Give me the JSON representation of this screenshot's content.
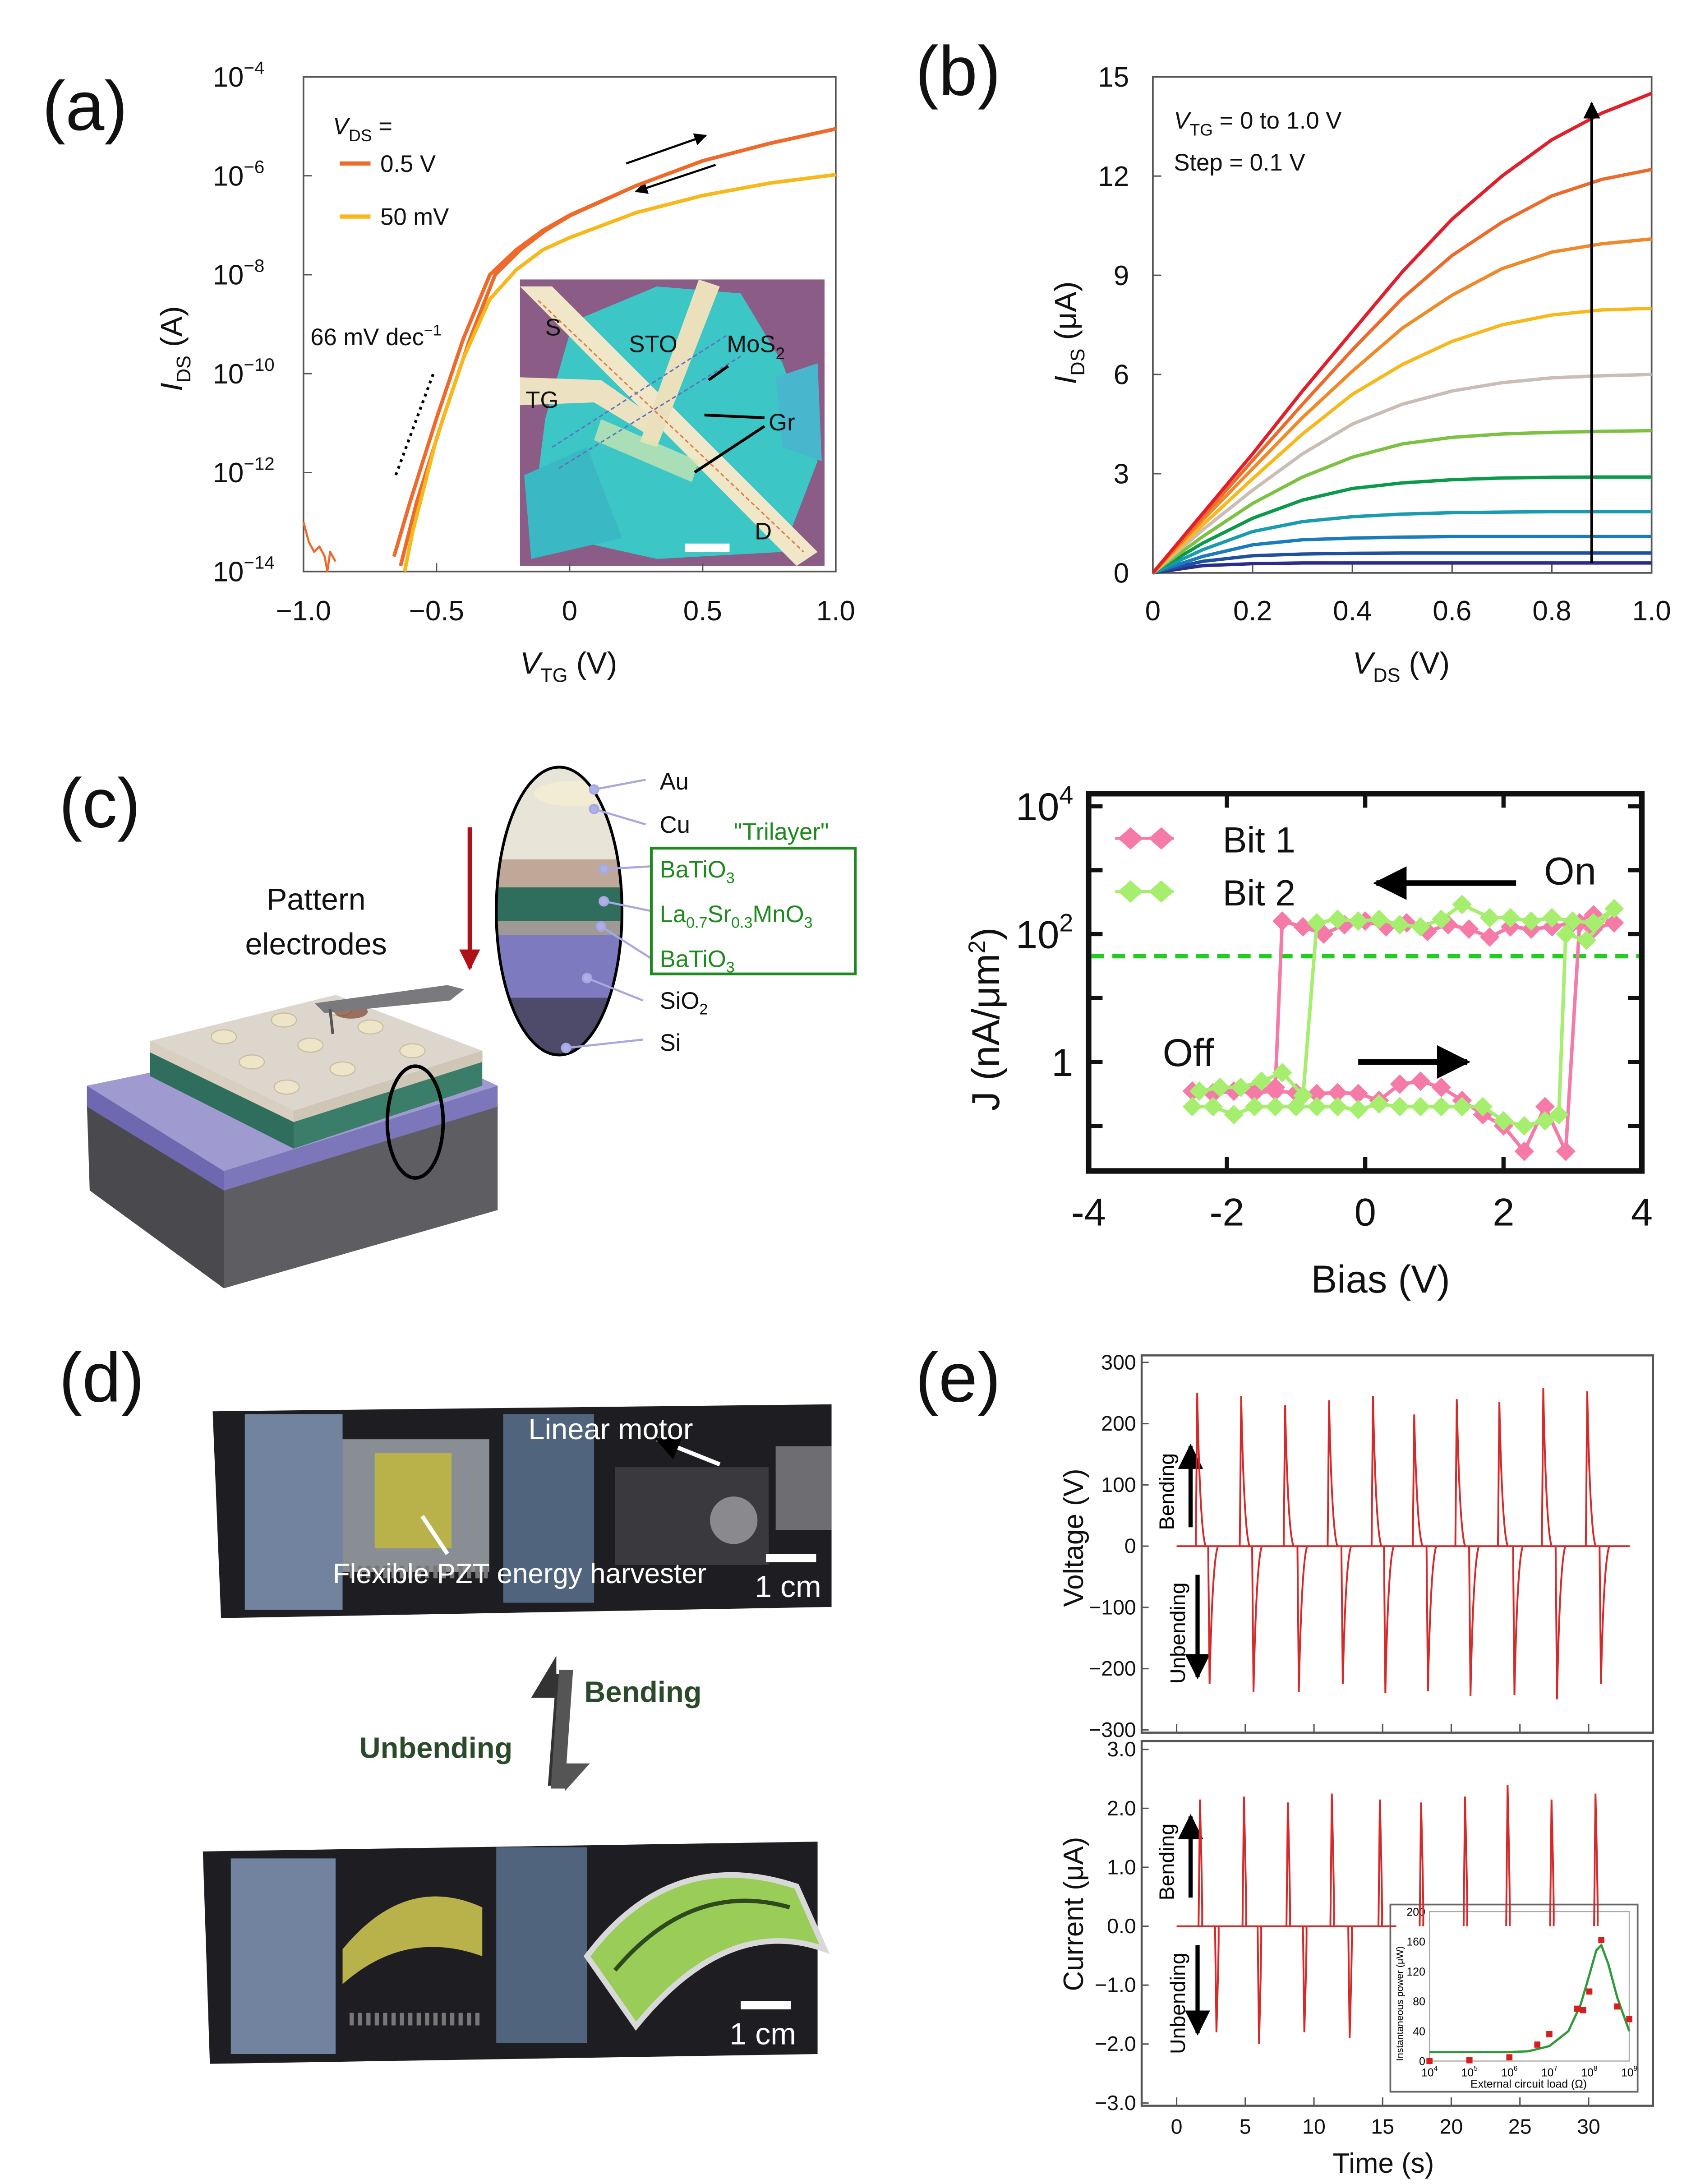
{
  "panels": {
    "a": "(a)",
    "b": "(b)",
    "c": "(c)",
    "d": "(d)",
    "e": "(e)"
  },
  "colors": {
    "orange": "#ef6a2a",
    "yellow": "#f7b81c",
    "pink": "#f57aa8",
    "lightgreen": "#a6ee6e",
    "dashgreen": "#22cc22",
    "spike": "#d42a2a",
    "fitgreen": "#2f9a3a",
    "trilayer": "#1e8a1e"
  },
  "chart_data": [
    {
      "id": "a",
      "type": "line",
      "yscale": "log",
      "xlabel": {
        "var": "V",
        "sub": "TG",
        "unit": " (V)"
      },
      "ylabel": {
        "var": "I",
        "sub": "DS",
        "unit": " (A)"
      },
      "xlim": [
        -1.0,
        1.0
      ],
      "ylim": [
        1e-14,
        0.0001
      ],
      "xticks": [
        "−1.0",
        "−0.5",
        "0",
        "0.5",
        "1.0"
      ],
      "xtick_values": [
        -1.0,
        -0.5,
        0,
        0.5,
        1.0
      ],
      "ytick_exponents": [
        "−4",
        "−6",
        "−8",
        "−10",
        "−12",
        "−14"
      ],
      "ytick_values": [
        -4,
        -6,
        -8,
        -10,
        -12,
        -14
      ],
      "legend": {
        "title_var": "V",
        "title_sub": "DS",
        "title_rest": " =",
        "placement": "top-left"
      },
      "series": [
        {
          "name": "0.5 V",
          "color": "#ef6a2a",
          "sweeps": [
            {
              "x": [
                -0.66,
                -0.6,
                -0.5,
                -0.4,
                -0.3,
                -0.2,
                -0.1,
                0,
                0.25,
                0.5,
                0.75,
                1.0
              ],
              "y": [
                2e-14,
                2.5e-13,
                1.26e-11,
                5e-10,
                1e-08,
                3.2e-08,
                7.9e-08,
                1.6e-07,
                6.3e-07,
                2e-06,
                4.5e-06,
                8.9e-06
              ]
            },
            {
              "x": [
                -0.635,
                -0.575,
                -0.475,
                -0.375,
                -0.28,
                -0.185,
                -0.09,
                0.005,
                0.25,
                0.5,
                0.75,
                1.0
              ],
              "y": [
                1.3e-14,
                2.5e-13,
                1.26e-11,
                5e-10,
                1e-08,
                3.2e-08,
                7.9e-08,
                1.6e-07,
                6.3e-07,
                2e-06,
                4.5e-06,
                8.9e-06
              ]
            }
          ]
        },
        {
          "name": "50 mV",
          "color": "#f7b81c",
          "sweeps": [
            {
              "x": [
                -0.62,
                -0.59,
                -0.5,
                -0.4,
                -0.3,
                -0.2,
                -0.1,
                0,
                0.25,
                0.5,
                0.75,
                1.0
              ],
              "y": [
                1e-14,
                6.3e-14,
                5e-12,
                2e-10,
                3.2e-09,
                1.26e-08,
                3.2e-08,
                5.6e-08,
                1.8e-07,
                4e-07,
                7.1e-07,
                1.05e-06
              ]
            }
          ]
        },
        {
          "name": "",
          "color": "#ef6a2a",
          "sweeps": [
            {
              "x": [
                -1.0,
                -0.98,
                -0.96,
                -0.94,
                -0.92,
                -0.91,
                -0.9,
                -0.88
              ],
              "y": [
                1e-13,
                4e-14,
                2.5e-14,
                3.2e-14,
                2e-14,
                1e-14,
                2.5e-14,
                1.6e-14
              ]
            }
          ]
        }
      ],
      "slope_annotation": {
        "text": "66 mV dec",
        "sup": "−1",
        "x": [
          -0.653,
          -0.512
        ],
        "y": [
          8.9e-13,
          1e-10
        ]
      },
      "inset": {
        "labels": {
          "S": "S",
          "STO": "STO",
          "MoS2": "MoS",
          "MoS2_sub": "2",
          "TG": "TG",
          "Gr": "Gr",
          "D": "D"
        }
      }
    },
    {
      "id": "b",
      "type": "line",
      "xlabel": {
        "var": "V",
        "sub": "DS",
        "unit": " (V)"
      },
      "ylabel": {
        "var": "I",
        "sub": "DS",
        "unit": " (μA)"
      },
      "xlim": [
        0,
        1.0
      ],
      "ylim": [
        0,
        15
      ],
      "xticks": [
        "0",
        "0.2",
        "0.4",
        "0.6",
        "0.8",
        "1.0"
      ],
      "xtick_values": [
        0,
        0.2,
        0.4,
        0.6,
        0.8,
        1.0
      ],
      "yticks": [
        "0",
        "3",
        "6",
        "9",
        "12",
        "15"
      ],
      "ytick_values": [
        0,
        3,
        6,
        9,
        12,
        15
      ],
      "annotation": {
        "line1_var": "V",
        "line1_sub": "TG",
        "line1_rest": " = 0 to 1.0 V",
        "line2": "Step = 0.1 V"
      },
      "x": [
        0,
        0.1,
        0.2,
        0.3,
        0.4,
        0.5,
        0.6,
        0.7,
        0.8,
        0.9,
        1.0
      ],
      "series": [
        {
          "color": "#2b2d8a",
          "values": [
            0,
            0.22,
            0.28,
            0.3,
            0.3,
            0.3,
            0.3,
            0.3,
            0.3,
            0.3,
            0.3
          ]
        },
        {
          "color": "#1f4fa0",
          "values": [
            0,
            0.35,
            0.52,
            0.57,
            0.59,
            0.6,
            0.6,
            0.6,
            0.6,
            0.6,
            0.6
          ]
        },
        {
          "color": "#1a7bbd",
          "values": [
            0,
            0.5,
            0.85,
            1.0,
            1.05,
            1.08,
            1.1,
            1.1,
            1.1,
            1.1,
            1.1
          ]
        },
        {
          "color": "#1a9cb0",
          "values": [
            0,
            0.7,
            1.25,
            1.55,
            1.7,
            1.78,
            1.82,
            1.84,
            1.85,
            1.85,
            1.85
          ]
        },
        {
          "color": "#0a9a4a",
          "values": [
            0,
            0.9,
            1.65,
            2.2,
            2.55,
            2.72,
            2.82,
            2.87,
            2.89,
            2.9,
            2.9
          ]
        },
        {
          "color": "#7dc142",
          "values": [
            0,
            1.1,
            2.1,
            2.9,
            3.5,
            3.9,
            4.1,
            4.2,
            4.25,
            4.28,
            4.3
          ]
        },
        {
          "color": "#c9bdb6",
          "values": [
            0,
            1.3,
            2.5,
            3.6,
            4.5,
            5.1,
            5.5,
            5.75,
            5.9,
            5.96,
            6.0
          ]
        },
        {
          "color": "#f7b81c",
          "values": [
            0,
            1.45,
            2.85,
            4.2,
            5.4,
            6.3,
            7.0,
            7.5,
            7.8,
            7.95,
            8.0
          ]
        },
        {
          "color": "#f08a28",
          "values": [
            0,
            1.6,
            3.15,
            4.7,
            6.1,
            7.4,
            8.4,
            9.2,
            9.7,
            9.95,
            10.1
          ]
        },
        {
          "color": "#ee6a2b",
          "values": [
            0,
            1.7,
            3.4,
            5.1,
            6.75,
            8.3,
            9.6,
            10.6,
            11.4,
            11.9,
            12.2
          ]
        },
        {
          "color": "#e31e2b",
          "values": [
            0,
            1.8,
            3.6,
            5.5,
            7.3,
            9.1,
            10.7,
            12.0,
            13.1,
            13.9,
            14.5
          ]
        }
      ]
    },
    {
      "id": "c",
      "type": "line",
      "yscale": "log",
      "xlabel": "Bias (V)",
      "ylabel": {
        "main": "J (nA/μm",
        "sup": "2",
        "end": ")"
      },
      "xlim": [
        -4,
        4
      ],
      "ylim": [
        0.02,
        16000
      ],
      "xticks": [
        "-4",
        "-2",
        "0",
        "2",
        "4"
      ],
      "xtick_values": [
        -4,
        -2,
        0,
        2,
        4
      ],
      "ytick_labels": [
        {
          "base": "10",
          "sup": "4",
          "value": 10000
        },
        {
          "base": "10",
          "sup": "2",
          "value": 100
        },
        {
          "base": "1",
          "sup": "",
          "value": 1
        }
      ],
      "threshold": 45,
      "annotations": {
        "on": "On",
        "off": "Off"
      },
      "legend_placement": "top-left",
      "series": [
        {
          "name": "Bit 1",
          "color": "#f57aa8",
          "x": [
            -2.5,
            -2.2,
            -1.9,
            -1.6,
            -1.3,
            -1.0,
            -0.7,
            -0.4,
            -0.1,
            0.2,
            0.5,
            0.8,
            1.1,
            1.4,
            1.7,
            2.0,
            2.3,
            2.6,
            2.9,
            3.1,
            3.3,
            3.6,
            3.3,
            3.0,
            2.7,
            2.4,
            2.1,
            1.8,
            1.5,
            1.2,
            0.9,
            0.6,
            0.3,
            0.0,
            -0.3,
            -0.6,
            -0.9,
            -1.2,
            -1.3,
            -1.6,
            -1.9,
            -2.2,
            -2.5
          ],
          "y": [
            0.35,
            0.32,
            0.35,
            0.33,
            0.35,
            0.33,
            0.32,
            0.33,
            0.32,
            0.25,
            0.45,
            0.5,
            0.4,
            0.25,
            0.15,
            0.1,
            0.04,
            0.2,
            0.04,
            150,
            120,
            150,
            200,
            150,
            130,
            120,
            130,
            90,
            120,
            140,
            110,
            150,
            130,
            160,
            140,
            100,
            130,
            160,
            0.4,
            0.35,
            0.35,
            0.33,
            0.35
          ]
        },
        {
          "name": "Bit 2",
          "color": "#a6ee6e",
          "x": [
            -2.5,
            -2.2,
            -1.9,
            -1.6,
            -1.3,
            -1.0,
            -0.7,
            -0.4,
            -0.1,
            0.2,
            0.5,
            0.8,
            1.1,
            1.4,
            1.7,
            2.0,
            2.3,
            2.6,
            2.8,
            2.9,
            3.2,
            3.6,
            3.3,
            3.0,
            2.7,
            2.4,
            2.1,
            1.8,
            1.4,
            1.1,
            0.8,
            0.5,
            0.2,
            -0.1,
            -0.4,
            -0.7,
            -0.9,
            -1.2,
            -1.5,
            -1.8,
            -2.1,
            -2.4
          ],
          "y": [
            0.2,
            0.2,
            0.15,
            0.2,
            0.2,
            0.2,
            0.2,
            0.2,
            0.18,
            0.22,
            0.2,
            0.2,
            0.2,
            0.2,
            0.2,
            0.12,
            0.1,
            0.12,
            0.15,
            100,
            80,
            250,
            150,
            160,
            180,
            160,
            180,
            180,
            290,
            170,
            130,
            140,
            170,
            160,
            170,
            150,
            0.3,
            0.68,
            0.5,
            0.4,
            0.4,
            0.35
          ]
        }
      ]
    },
    {
      "id": "e-voltage",
      "type": "line",
      "ylabel": "Voltage (V)",
      "xlim": [
        -2.5,
        34.7
      ],
      "ylim": [
        -300,
        300
      ],
      "yticks": [
        "300",
        "200",
        "100",
        "0",
        "−100",
        "−200",
        "−300"
      ],
      "ytick_values": [
        300,
        200,
        100,
        0,
        -100,
        -200,
        -300
      ],
      "annotations": {
        "up": "Bending",
        "down": "Unbending"
      },
      "positive_spikes": {
        "t": [
          1.5,
          4.7,
          7.9,
          11.1,
          14.3,
          17.3,
          20.4,
          23.5,
          26.7,
          29.9
        ],
        "v": [
          250,
          245,
          230,
          238,
          245,
          215,
          240,
          235,
          258,
          253
        ]
      },
      "negative_spikes": {
        "t": [
          2.4,
          5.6,
          8.9,
          12.1,
          15.2,
          18.3,
          21.4,
          24.6,
          27.7,
          30.9
        ],
        "v": [
          -225,
          -238,
          -238,
          -225,
          -240,
          -237,
          -245,
          -243,
          -250,
          -225
        ]
      }
    },
    {
      "id": "e-current",
      "type": "line",
      "xlabel": "Time (s)",
      "ylabel": "Current (μA)",
      "xlim": [
        -2.5,
        34.7
      ],
      "ylim": [
        -3.0,
        3.0
      ],
      "xticks": [
        "0",
        "5",
        "10",
        "15",
        "20",
        "25",
        "30"
      ],
      "xtick_values": [
        0,
        5,
        10,
        15,
        20,
        25,
        30
      ],
      "yticks": [
        "3.0",
        "2.0",
        "1.0",
        "0.0",
        "−1.0",
        "−2.0",
        "−3.0"
      ],
      "ytick_values": [
        3,
        2,
        1,
        0,
        -1,
        -2,
        -3
      ],
      "annotations": {
        "up": "Bending",
        "down": "Unbending"
      },
      "positive_spikes": {
        "t": [
          1.7,
          4.9,
          8.1,
          11.3,
          14.8,
          17.8,
          21.0,
          24.1,
          27.3,
          30.5
        ],
        "v": [
          2.15,
          2.2,
          2.1,
          2.25,
          2.15,
          2.1,
          2.2,
          2.4,
          2.15,
          2.25
        ]
      },
      "negative_spikes": {
        "t": [
          2.9,
          6.0,
          9.3,
          12.6
        ],
        "v": [
          -1.8,
          -2.0,
          -1.8,
          -1.9
        ]
      }
    },
    {
      "id": "e-inset",
      "type": "scatter",
      "xscale": "log",
      "xlabel": "External circuit load (Ω)",
      "ylabel": "Instantaneous power (μW)",
      "xlim": [
        10000.0,
        1000000000.0
      ],
      "ylim": [
        0,
        200
      ],
      "xtick_exponents": [
        "4",
        "5",
        "6",
        "7",
        "8",
        "9"
      ],
      "xtick_values": [
        4,
        5,
        6,
        7,
        8,
        9
      ],
      "yticks": [
        "0",
        "40",
        "80",
        "120",
        "160",
        "200"
      ],
      "ytick_values": [
        0,
        40,
        80,
        120,
        160,
        200
      ],
      "points": {
        "x": [
          10000.0,
          100000.0,
          1000000.0,
          5000000.0,
          10000000.0,
          50000000.0,
          70000000.0,
          100000000.0,
          200000000.0,
          500000000.0,
          1000000000.0
        ],
        "y": [
          0,
          1,
          5,
          22,
          36,
          70,
          68,
          93,
          162,
          73,
          56
        ]
      },
      "fit": {
        "x": [
          10000.0,
          100000.0,
          1000000.0,
          3000000.0,
          10000000.0,
          30000000.0,
          60000000.0,
          100000000.0,
          150000000.0,
          200000000.0,
          300000000.0,
          500000000.0,
          1000000000.0
        ],
        "y": [
          12,
          12,
          12,
          13,
          20,
          40,
          75,
          115,
          148,
          155,
          130,
          85,
          40
        ]
      }
    }
  ],
  "diagram_c": {
    "title": "Pattern electrodes",
    "title_line1": "Pattern",
    "title_line2": "electrodes",
    "layers": {
      "au": "Au",
      "cu": "Cu",
      "trilayer": "\"Trilayer\"",
      "bto1": "BaTiO",
      "bto1_sub": "3",
      "lsmo_a": "La",
      "lsmo_a_sub": "0.7",
      "lsmo_b": "Sr",
      "lsmo_b_sub": "0.3",
      "lsmo_c": "MnO",
      "lsmo_c_sub": "3",
      "bto2": "BaTiO",
      "bto2_sub": "3",
      "sio2": "SiO",
      "sio2_sub": "2",
      "si": "Si"
    }
  },
  "photo_d": {
    "linear_motor": "Linear motor",
    "harvester": "Flexible PZT energy harvester",
    "scale_top": "1 cm",
    "scale_bottom": "1 cm",
    "bending": "Bending",
    "unbending": "Unbending"
  }
}
